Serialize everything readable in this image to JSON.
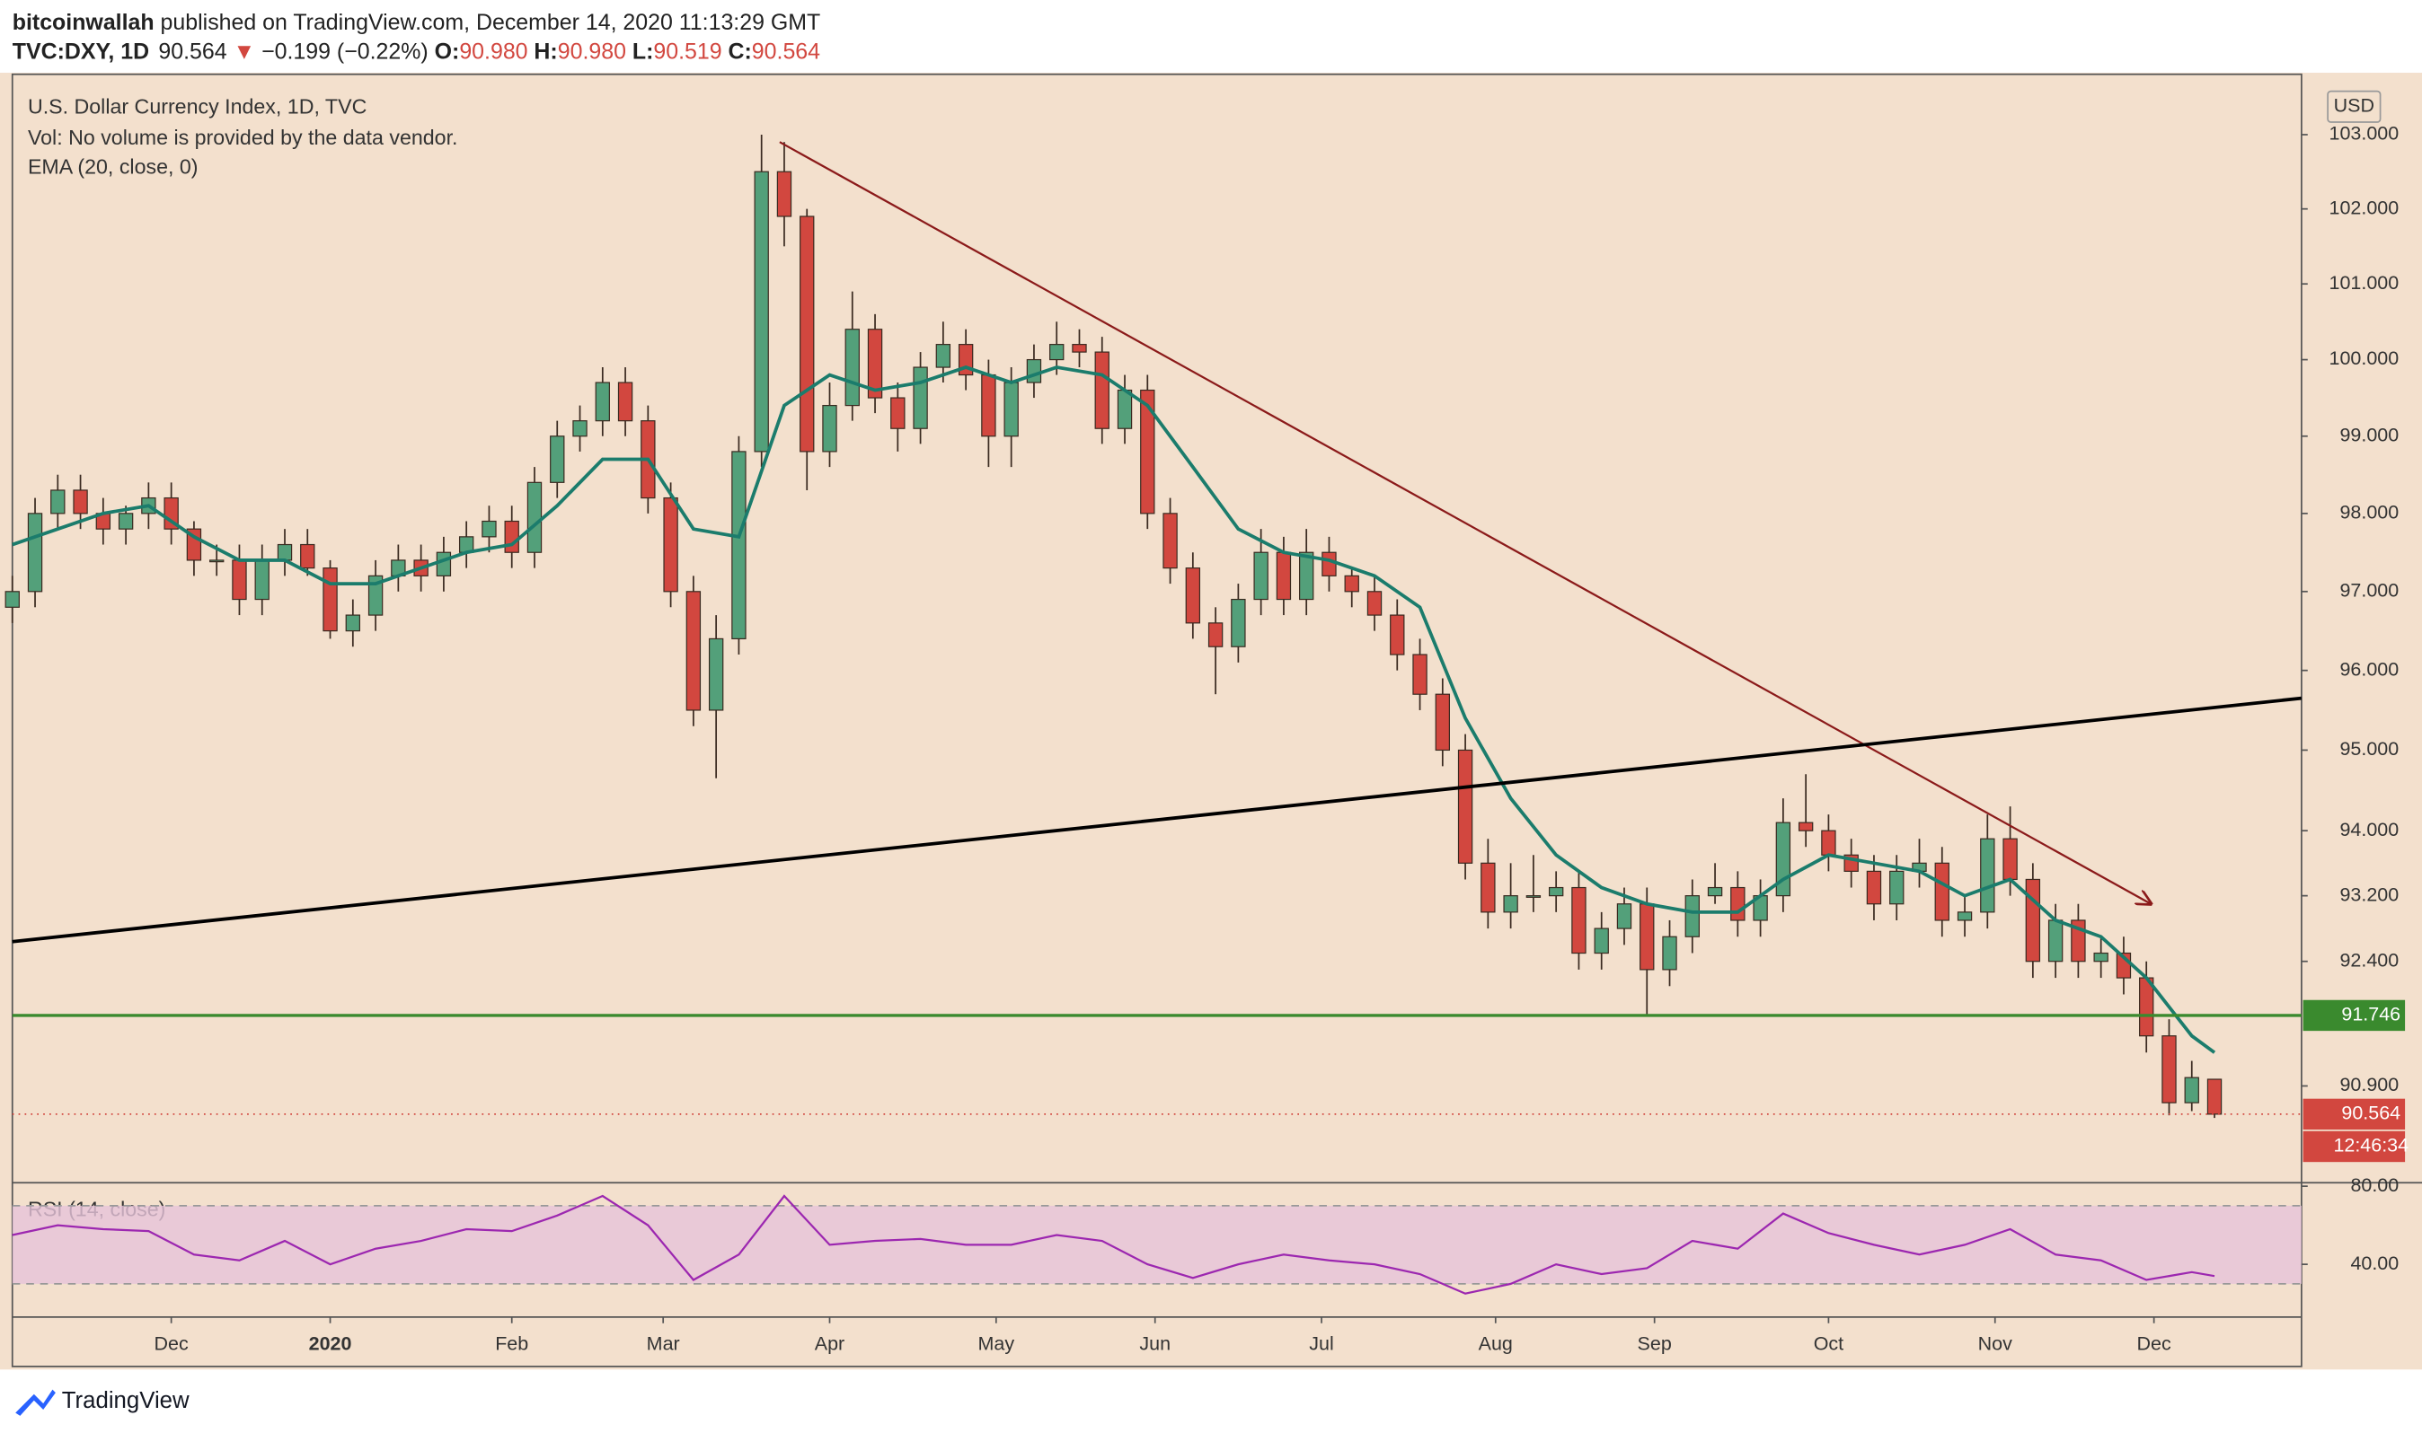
{
  "header": {
    "author": "bitcoinwallah",
    "published": " published on TradingView.com, December 14, 2020 11:13:29 GMT",
    "symbol": "TVC:DXY, 1D",
    "price": "90.564",
    "arrow": "▼",
    "change": "−0.199 (−0.22%)",
    "ohlc": [
      {
        "key": "O:",
        "value": "90.980"
      },
      {
        "key": "H:",
        "value": "90.980"
      },
      {
        "key": "L:",
        "value": "90.519"
      },
      {
        "key": "C:",
        "value": "90.564"
      }
    ]
  },
  "footer": {
    "brand": "TradingView"
  },
  "chart_data": [
    {
      "type": "candlestick",
      "title": "U.S. Dollar Currency Index, 1D, TVC",
      "subtitle": "Vol: No volume is provided by the data vendor.",
      "y_unit": "USD",
      "log": true,
      "grid": false,
      "up_color": "#53a07a",
      "down_color": "#d2473f",
      "xlim": [
        0,
        302.5
      ],
      "ylim": [
        89.77,
        103.82
      ],
      "xticks": [
        {
          "value": 21,
          "label": "Dec"
        },
        {
          "value": 42,
          "label": "2020"
        },
        {
          "value": 66,
          "label": "Feb"
        },
        {
          "value": 86,
          "label": "Mar"
        },
        {
          "value": 108,
          "label": "Apr"
        },
        {
          "value": 130,
          "label": "May"
        },
        {
          "value": 151,
          "label": "Jun"
        },
        {
          "value": 173,
          "label": "Jul"
        },
        {
          "value": 196,
          "label": "Aug"
        },
        {
          "value": 217,
          "label": "Sep"
        },
        {
          "value": 240,
          "label": "Oct"
        },
        {
          "value": 262,
          "label": "Nov"
        },
        {
          "value": 283,
          "label": "Dec"
        }
      ],
      "yticks": [
        {
          "value": 103,
          "label": "103.000"
        },
        {
          "value": 102,
          "label": "102.000"
        },
        {
          "value": 101,
          "label": "101.000"
        },
        {
          "value": 100,
          "label": "100.000"
        },
        {
          "value": 99,
          "label": "99.000"
        },
        {
          "value": 98,
          "label": "98.000"
        },
        {
          "value": 97,
          "label": "97.000"
        },
        {
          "value": 96,
          "label": "96.000"
        },
        {
          "value": 95,
          "label": "95.000"
        },
        {
          "value": 94,
          "label": "94.000"
        },
        {
          "value": 93.2,
          "label": "93.200"
        },
        {
          "value": 92.4,
          "label": "92.400"
        },
        {
          "value": 90.9,
          "label": "90.900"
        }
      ],
      "x": [
        0,
        3,
        6,
        9,
        12,
        15,
        18,
        21,
        24,
        27,
        30,
        33,
        36,
        39,
        42,
        45,
        48,
        51,
        54,
        57,
        60,
        63,
        66,
        69,
        72,
        75,
        78,
        81,
        84,
        87,
        90,
        93,
        96,
        99,
        102,
        105,
        108,
        111,
        114,
        117,
        120,
        123,
        126,
        129,
        132,
        135,
        138,
        141,
        144,
        147,
        150,
        153,
        156,
        159,
        162,
        165,
        168,
        171,
        174,
        177,
        180,
        183,
        186,
        189,
        192,
        195,
        198,
        201,
        204,
        207,
        210,
        213,
        216,
        219,
        222,
        225,
        228,
        231,
        234,
        237,
        240,
        243,
        246,
        249,
        252,
        255,
        258,
        261,
        264,
        267,
        270,
        273,
        276,
        279,
        282,
        285,
        288,
        291
      ],
      "open": [
        96.8,
        97.0,
        98.0,
        98.3,
        98.0,
        97.8,
        98.0,
        98.2,
        97.8,
        97.4,
        97.4,
        96.9,
        97.4,
        97.6,
        97.3,
        96.5,
        96.7,
        97.2,
        97.4,
        97.2,
        97.5,
        97.7,
        97.9,
        97.5,
        98.4,
        99.0,
        99.2,
        99.7,
        99.2,
        98.2,
        97.0,
        95.5,
        96.4,
        98.8,
        102.5,
        101.9,
        98.8,
        99.4,
        100.4,
        99.5,
        99.1,
        99.9,
        100.2,
        99.8,
        99.0,
        99.7,
        100.0,
        100.2,
        100.1,
        99.1,
        99.6,
        98.0,
        97.3,
        96.6,
        96.3,
        96.9,
        97.5,
        96.9,
        97.5,
        97.2,
        97.0,
        96.7,
        96.2,
        95.7,
        95.0,
        93.6,
        93.0,
        93.2,
        93.2,
        93.3,
        92.5,
        92.8,
        93.1,
        92.3,
        92.7,
        93.2,
        93.3,
        92.9,
        93.2,
        94.1,
        94.0,
        93.7,
        93.5,
        93.1,
        93.5,
        93.6,
        92.9,
        93.0,
        93.9,
        93.4,
        92.4,
        92.9,
        92.4,
        92.5,
        92.2,
        91.5,
        90.7,
        90.98
      ],
      "high": [
        97.2,
        98.2,
        98.5,
        98.5,
        98.2,
        98.1,
        98.4,
        98.4,
        97.9,
        97.6,
        97.6,
        97.6,
        97.8,
        97.8,
        97.4,
        96.9,
        97.4,
        97.6,
        97.6,
        97.7,
        97.9,
        98.1,
        98.1,
        98.6,
        99.2,
        99.4,
        99.9,
        99.9,
        99.4,
        98.4,
        97.2,
        96.7,
        99.0,
        103.0,
        102.9,
        102.0,
        99.7,
        100.9,
        100.6,
        99.7,
        100.1,
        100.5,
        100.4,
        100.0,
        99.9,
        100.2,
        100.5,
        100.4,
        100.3,
        99.8,
        99.8,
        98.2,
        97.5,
        96.8,
        97.1,
        97.8,
        97.7,
        97.8,
        97.7,
        97.3,
        97.2,
        96.9,
        96.4,
        95.9,
        95.2,
        93.9,
        93.6,
        93.7,
        93.5,
        93.5,
        93.0,
        93.3,
        93.3,
        92.9,
        93.4,
        93.6,
        93.5,
        93.4,
        94.4,
        94.7,
        94.2,
        93.9,
        93.7,
        93.7,
        93.9,
        93.8,
        93.2,
        94.2,
        94.3,
        93.6,
        93.1,
        93.1,
        92.7,
        92.7,
        92.4,
        91.7,
        91.2,
        90.98
      ],
      "low": [
        96.6,
        96.8,
        97.8,
        97.8,
        97.6,
        97.6,
        97.8,
        97.6,
        97.2,
        97.2,
        96.7,
        96.7,
        97.2,
        97.2,
        96.4,
        96.3,
        96.5,
        97.0,
        97.0,
        97.0,
        97.3,
        97.5,
        97.3,
        97.3,
        98.2,
        98.8,
        99.0,
        99.0,
        98.0,
        96.8,
        95.3,
        94.65,
        96.2,
        98.6,
        101.5,
        98.3,
        98.6,
        99.2,
        99.3,
        98.8,
        98.9,
        99.7,
        99.6,
        98.6,
        98.6,
        99.5,
        99.8,
        99.9,
        98.9,
        98.9,
        97.8,
        97.1,
        96.4,
        95.7,
        96.1,
        96.7,
        96.7,
        96.7,
        97.0,
        96.8,
        96.5,
        96.0,
        95.5,
        94.8,
        93.4,
        92.8,
        92.8,
        93.0,
        93.0,
        92.3,
        92.3,
        92.6,
        91.75,
        92.1,
        92.5,
        93.1,
        92.7,
        92.7,
        93.0,
        93.8,
        93.5,
        93.3,
        92.9,
        92.9,
        93.3,
        92.7,
        92.7,
        92.8,
        93.2,
        92.2,
        92.2,
        92.2,
        92.2,
        92.0,
        91.3,
        90.55,
        90.6,
        90.519
      ],
      "close": [
        97.0,
        98.0,
        98.3,
        98.0,
        97.8,
        98.0,
        98.2,
        97.8,
        97.4,
        97.4,
        96.9,
        97.4,
        97.6,
        97.3,
        96.5,
        96.7,
        97.2,
        97.4,
        97.2,
        97.5,
        97.7,
        97.9,
        97.5,
        98.4,
        99.0,
        99.2,
        99.7,
        99.2,
        98.2,
        97.0,
        95.5,
        96.4,
        98.8,
        102.5,
        101.9,
        98.8,
        99.4,
        100.4,
        99.5,
        99.1,
        99.9,
        100.2,
        99.8,
        99.0,
        99.7,
        100.0,
        100.2,
        100.1,
        99.1,
        99.6,
        98.0,
        97.3,
        96.6,
        96.3,
        96.9,
        97.5,
        96.9,
        97.5,
        97.2,
        97.0,
        96.7,
        96.2,
        95.7,
        95.0,
        93.6,
        93.0,
        93.2,
        93.2,
        93.3,
        92.5,
        92.8,
        93.1,
        92.3,
        92.7,
        93.2,
        93.3,
        92.9,
        93.2,
        94.1,
        94.0,
        93.7,
        93.5,
        93.1,
        93.5,
        93.6,
        92.9,
        93.0,
        93.9,
        93.4,
        92.4,
        92.9,
        92.4,
        92.5,
        92.2,
        91.5,
        90.7,
        91.0,
        90.564
      ],
      "series": [
        {
          "name": "EMA (20, close, 0)",
          "color": "#1b7c6c",
          "x": [
            0,
            6,
            12,
            18,
            24,
            30,
            36,
            42,
            48,
            54,
            60,
            66,
            72,
            78,
            84,
            90,
            96,
            102,
            108,
            114,
            120,
            126,
            132,
            138,
            144,
            150,
            156,
            162,
            168,
            174,
            180,
            186,
            192,
            198,
            204,
            210,
            216,
            222,
            228,
            234,
            240,
            246,
            252,
            258,
            264,
            270,
            276,
            282,
            288,
            291
          ],
          "values": [
            97.6,
            97.8,
            98.0,
            98.1,
            97.7,
            97.4,
            97.4,
            97.1,
            97.1,
            97.3,
            97.5,
            97.6,
            98.1,
            98.7,
            98.7,
            97.8,
            97.7,
            99.4,
            99.8,
            99.6,
            99.7,
            99.9,
            99.7,
            99.9,
            99.8,
            99.4,
            98.6,
            97.8,
            97.5,
            97.4,
            97.2,
            96.8,
            95.4,
            94.4,
            93.7,
            93.3,
            93.1,
            93.0,
            93.0,
            93.4,
            93.7,
            93.6,
            93.5,
            93.2,
            93.4,
            92.9,
            92.7,
            92.2,
            91.5,
            91.3
          ]
        }
      ],
      "trend_lines": [
        {
          "x": [
            101.4,
            282.6
          ],
          "y": [
            102.9,
            93.1
          ],
          "color": "#8b1a1a",
          "arrow": true
        },
        {
          "x": [
            0,
            302.5
          ],
          "y": [
            92.64,
            95.65
          ],
          "color": "#000000",
          "arrow": false
        }
      ],
      "hline": {
        "value": 91.746,
        "color": "#3a8a2e"
      },
      "last_price": 90.564,
      "last_color": "#d2473f",
      "countdown": "12:46:34"
    },
    {
      "type": "line",
      "title": "RSI (14, close)",
      "color": "#9c27b0",
      "band": [
        30,
        70
      ],
      "band_color": "#e6c3d9",
      "ylim": [
        13,
        81
      ],
      "yticks": [
        {
          "value": 80,
          "label": "80.00"
        },
        {
          "value": 40,
          "label": "40.00"
        }
      ],
      "x": [
        0,
        6,
        12,
        18,
        24,
        30,
        36,
        42,
        48,
        54,
        60,
        66,
        72,
        78,
        84,
        90,
        96,
        102,
        108,
        114,
        120,
        126,
        132,
        138,
        144,
        150,
        156,
        162,
        168,
        174,
        180,
        186,
        192,
        198,
        204,
        210,
        216,
        222,
        228,
        234,
        240,
        246,
        252,
        258,
        264,
        270,
        276,
        282,
        288,
        291
      ],
      "values": [
        55,
        60,
        58,
        57,
        45,
        42,
        52,
        40,
        48,
        52,
        58,
        57,
        65,
        75,
        60,
        32,
        45,
        75,
        50,
        52,
        53,
        50,
        50,
        55,
        52,
        40,
        33,
        40,
        45,
        42,
        40,
        35,
        25,
        30,
        40,
        35,
        38,
        52,
        48,
        66,
        56,
        50,
        45,
        50,
        58,
        45,
        42,
        32,
        36,
        34
      ]
    }
  ]
}
